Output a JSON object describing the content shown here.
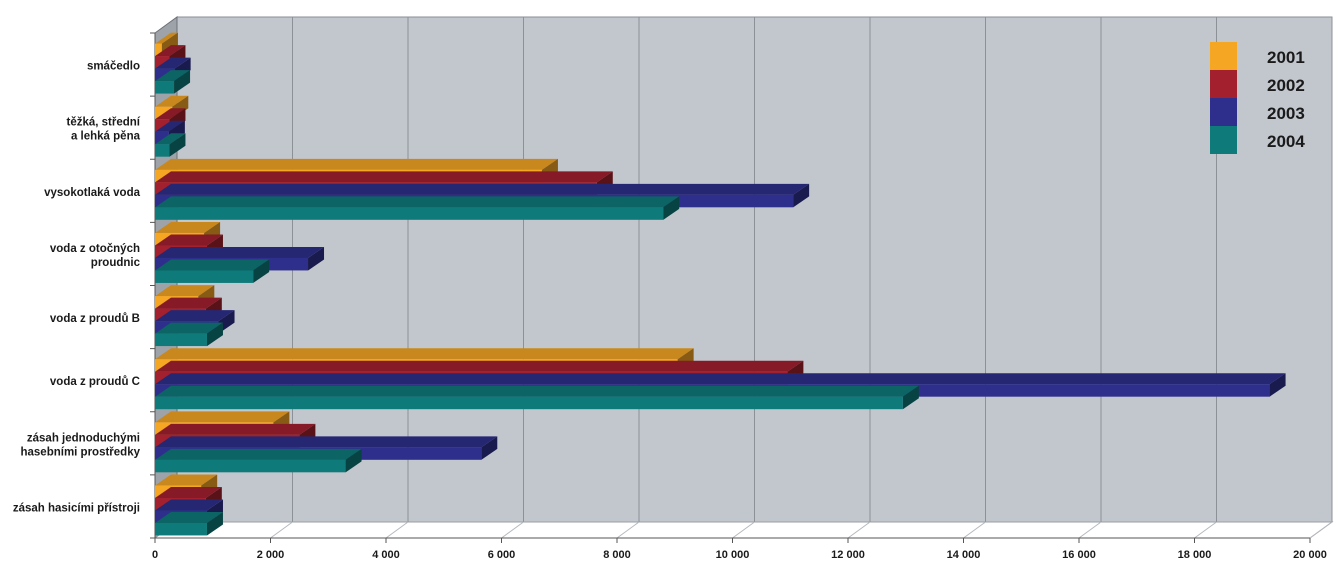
{
  "chart_data": {
    "type": "bar",
    "orientation": "horizontal",
    "three_d": true,
    "categories": [
      [
        "smáčedlo"
      ],
      [
        "těžká, střední",
        "a lehká pěna"
      ],
      [
        "vysokotlaká voda"
      ],
      [
        "voda z otočných",
        "proudnic"
      ],
      [
        "voda z proudů B"
      ],
      [
        "voda z proudů C"
      ],
      [
        "zásah jednoduchými",
        "hasebními prostředky"
      ],
      [
        "zásah hasicími přístroji"
      ]
    ],
    "series": [
      {
        "name": "2001",
        "color": "#f5a623",
        "values": [
          120,
          300,
          6700,
          850,
          750,
          9050,
          2050,
          800
        ]
      },
      {
        "name": "2002",
        "color": "#a3202e",
        "values": [
          250,
          250,
          7650,
          900,
          880,
          10950,
          2500,
          880
        ]
      },
      {
        "name": "2003",
        "color": "#2e2f8c",
        "values": [
          340,
          240,
          11050,
          2650,
          1100,
          19300,
          5650,
          900
        ]
      },
      {
        "name": "2004",
        "color": "#0f7a7a",
        "values": [
          330,
          250,
          8800,
          1700,
          900,
          12950,
          3300,
          900
        ]
      }
    ],
    "x_ticks": [
      "0",
      "2 000",
      "4 000",
      "6 000",
      "8 000",
      "10 000",
      "12 000",
      "14 000",
      "16 000",
      "18 000",
      "20 000"
    ],
    "xlim": [
      0,
      20000
    ],
    "grid": true,
    "legend_position": "top-right",
    "title": "",
    "xlabel": "",
    "ylabel": ""
  }
}
